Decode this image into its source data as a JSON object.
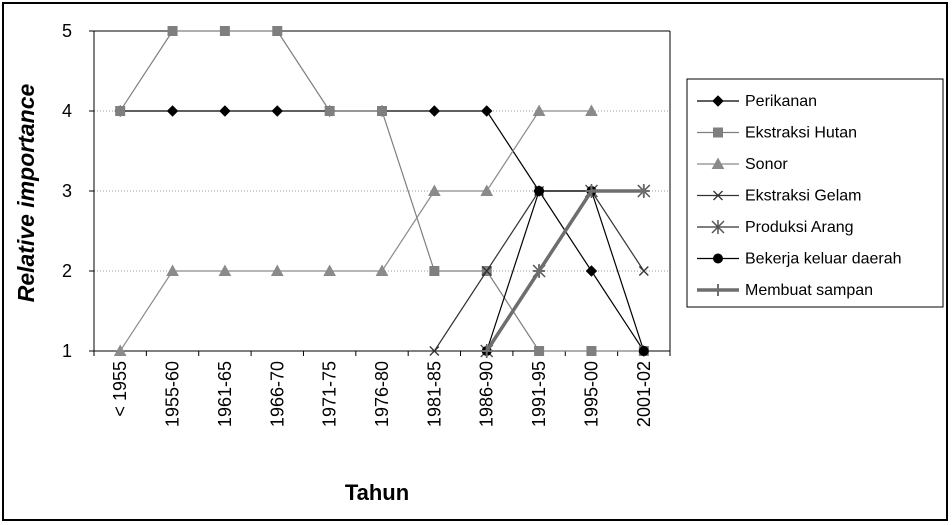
{
  "chart_data": {
    "type": "line",
    "categories": [
      "< 1955",
      "1955-60",
      "1961-65",
      "1966-70",
      "1971-75",
      "1976-80",
      "1981-85",
      "1986-90",
      "1991-95",
      "1995-00",
      "2001-02"
    ],
    "ylim": [
      1,
      5
    ],
    "yticks": [
      "1",
      "2",
      "3",
      "4",
      "5"
    ],
    "ylabel": "Relative importance",
    "xlabel": "Tahun",
    "grid": "horizontal dotted",
    "legend_position": "right",
    "series": [
      {
        "name": "Perikanan",
        "marker": "diamond",
        "color": "#000000",
        "width": 1.2,
        "values": [
          4,
          4,
          4,
          4,
          4,
          4,
          4,
          4,
          3,
          2,
          1
        ]
      },
      {
        "name": "Ekstraksi Hutan",
        "marker": "square",
        "color": "#7f7f7f",
        "width": 1.2,
        "values": [
          4,
          5,
          5,
          5,
          4,
          4,
          2,
          2,
          1,
          1,
          1
        ]
      },
      {
        "name": "Sonor",
        "marker": "triangle",
        "color": "#8a8a8a",
        "width": 1.2,
        "values": [
          1,
          2,
          2,
          2,
          2,
          2,
          3,
          3,
          4,
          4,
          null
        ]
      },
      {
        "name": "Ekstraksi Gelam",
        "marker": "x",
        "color": "#333333",
        "width": 1.2,
        "values": [
          null,
          null,
          null,
          null,
          null,
          null,
          1,
          2,
          3,
          3,
          2
        ]
      },
      {
        "name": "Produksi Arang",
        "marker": "star",
        "color": "#555555",
        "width": 1.6,
        "values": [
          null,
          null,
          null,
          null,
          null,
          null,
          null,
          1,
          2,
          3,
          3
        ]
      },
      {
        "name": "Bekerja keluar daerah",
        "marker": "circle",
        "color": "#000000",
        "width": 1.2,
        "values": [
          null,
          null,
          null,
          null,
          null,
          null,
          null,
          1,
          3,
          3,
          1
        ]
      },
      {
        "name": "Membuat sampan",
        "marker": "plus",
        "color": "#6e6e6e",
        "width": 3.5,
        "values": [
          null,
          null,
          null,
          null,
          null,
          null,
          null,
          1,
          2,
          3,
          3
        ]
      }
    ]
  }
}
